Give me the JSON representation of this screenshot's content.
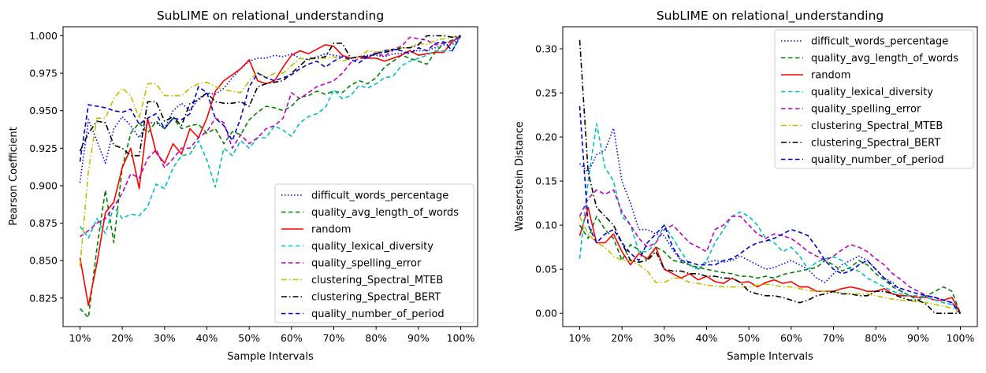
{
  "chart_data": [
    {
      "type": "line",
      "title": "SubLIME on relational_understanding",
      "xlabel": "Sample Intervals",
      "ylabel": "Pearson Coefficient",
      "legend_position": "bottom-right",
      "x": [
        10,
        12,
        14,
        16,
        18,
        20,
        22,
        24,
        26,
        28,
        30,
        32,
        34,
        36,
        38,
        40,
        42,
        44,
        46,
        48,
        50,
        52,
        54,
        56,
        58,
        60,
        62,
        64,
        66,
        68,
        70,
        72,
        74,
        76,
        78,
        80,
        82,
        84,
        86,
        88,
        90,
        92,
        94,
        96,
        98,
        100
      ],
      "x_tick_values": [
        10,
        20,
        30,
        40,
        50,
        60,
        70,
        80,
        90,
        100
      ],
      "x_tick_labels": [
        "10%",
        "20%",
        "30%",
        "40%",
        "50%",
        "60%",
        "70%",
        "80%",
        "90%",
        "100%"
      ],
      "xlim": [
        6,
        104
      ],
      "ylim": [
        0.806,
        1.006
      ],
      "y_ticks": [
        0.825,
        0.85,
        0.875,
        0.9,
        0.925,
        0.95,
        0.975,
        1.0
      ],
      "y_tick_labels": [
        "0.825",
        "0.850",
        "0.875",
        "0.900",
        "0.925",
        "0.950",
        "0.975",
        "1.000"
      ],
      "series": [
        {
          "name": "difficult_words_percentage",
          "color": "#0000ff",
          "dash": "dotted",
          "values": [
            0.902,
            0.944,
            0.93,
            0.915,
            0.938,
            0.946,
            0.94,
            0.932,
            0.942,
            0.942,
            0.938,
            0.95,
            0.955,
            0.95,
            0.958,
            0.962,
            0.961,
            0.965,
            0.972,
            0.978,
            0.983,
            0.985,
            0.985,
            0.987,
            0.986,
            0.988,
            0.985,
            0.984,
            0.986,
            0.988,
            0.987,
            0.986,
            0.985,
            0.986,
            0.987,
            0.987,
            0.986,
            0.988,
            0.988,
            0.99,
            0.99,
            0.99,
            0.992,
            0.994,
            0.994,
            1.0
          ]
        },
        {
          "name": "quality_avg_length_of_words",
          "color": "#008000",
          "dash": "dashed",
          "values": [
            0.818,
            0.812,
            0.858,
            0.897,
            0.862,
            0.912,
            0.935,
            0.942,
            0.935,
            0.943,
            0.938,
            0.945,
            0.938,
            0.94,
            0.941,
            0.935,
            0.938,
            0.928,
            0.936,
            0.934,
            0.944,
            0.949,
            0.953,
            0.952,
            0.95,
            0.953,
            0.959,
            0.96,
            0.963,
            0.961,
            0.963,
            0.962,
            0.967,
            0.97,
            0.968,
            0.972,
            0.979,
            0.983,
            0.987,
            0.985,
            0.983,
            0.981,
            0.989,
            0.995,
            0.997,
            1.0
          ]
        },
        {
          "name": "random",
          "color": "#ff0000",
          "dash": "solid",
          "values": [
            0.852,
            0.82,
            0.848,
            0.882,
            0.889,
            0.912,
            0.925,
            0.898,
            0.945,
            0.922,
            0.915,
            0.928,
            0.921,
            0.938,
            0.932,
            0.945,
            0.963,
            0.97,
            0.974,
            0.978,
            0.984,
            0.97,
            0.968,
            0.97,
            0.979,
            0.987,
            0.99,
            0.988,
            0.991,
            0.994,
            0.993,
            0.987,
            0.985,
            0.986,
            0.985,
            0.985,
            0.983,
            0.985,
            0.987,
            0.99,
            0.987,
            0.988,
            0.989,
            0.989,
            0.996,
            1.0
          ]
        },
        {
          "name": "quality_lexical_diversity",
          "color": "#00bfbf",
          "dash": "dashed",
          "values": [
            0.873,
            0.865,
            0.878,
            0.868,
            0.886,
            0.878,
            0.881,
            0.88,
            0.886,
            0.901,
            0.898,
            0.912,
            0.92,
            0.921,
            0.93,
            0.917,
            0.899,
            0.925,
            0.92,
            0.93,
            0.925,
            0.932,
            0.932,
            0.94,
            0.937,
            0.933,
            0.942,
            0.946,
            0.948,
            0.952,
            0.964,
            0.958,
            0.96,
            0.967,
            0.965,
            0.968,
            0.972,
            0.973,
            0.98,
            0.983,
            0.985,
            0.987,
            0.99,
            0.99,
            0.99,
            1.0
          ]
        },
        {
          "name": "quality_spelling_error",
          "color": "#bf00bf",
          "dash": "dashed",
          "values": [
            0.866,
            0.87,
            0.875,
            0.878,
            0.886,
            0.895,
            0.908,
            0.905,
            0.918,
            0.924,
            0.912,
            0.918,
            0.925,
            0.925,
            0.932,
            0.936,
            0.945,
            0.942,
            0.925,
            0.934,
            0.928,
            0.932,
            0.938,
            0.94,
            0.945,
            0.962,
            0.958,
            0.962,
            0.966,
            0.968,
            0.97,
            0.975,
            0.982,
            0.985,
            0.985,
            0.989,
            0.986,
            0.991,
            0.993,
            0.999,
            0.998,
            0.997,
            0.994,
            0.995,
            0.996,
            1.0
          ]
        },
        {
          "name": "clustering_Spectral_MTEB",
          "color": "#bfbf00",
          "dash": "dashdot",
          "values": [
            0.846,
            0.91,
            0.945,
            0.945,
            0.958,
            0.965,
            0.96,
            0.945,
            0.968,
            0.968,
            0.96,
            0.96,
            0.96,
            0.965,
            0.968,
            0.969,
            0.966,
            0.964,
            0.963,
            0.962,
            0.97,
            0.976,
            0.972,
            0.975,
            0.975,
            0.98,
            0.985,
            0.984,
            0.985,
            0.985,
            0.986,
            0.983,
            0.985,
            0.986,
            0.99,
            0.989,
            0.99,
            0.991,
            0.992,
            0.992,
            0.995,
            0.994,
            0.997,
            0.998,
            0.999,
            1.0
          ]
        },
        {
          "name": "clustering_Spectral_BERT",
          "color": "#000000",
          "dash": "dashdot",
          "values": [
            0.923,
            0.935,
            0.943,
            0.942,
            0.927,
            0.925,
            0.92,
            0.92,
            0.956,
            0.956,
            0.943,
            0.946,
            0.94,
            0.955,
            0.957,
            0.962,
            0.956,
            0.955,
            0.955,
            0.956,
            0.953,
            0.966,
            0.968,
            0.969,
            0.97,
            0.975,
            0.98,
            0.985,
            0.985,
            0.986,
            0.995,
            0.995,
            0.985,
            0.986,
            0.986,
            0.988,
            0.989,
            0.99,
            0.992,
            0.992,
            0.994,
            1.0,
            1.0,
            1.0,
            0.999,
            1.0
          ]
        },
        {
          "name": "quality_number_of_period",
          "color": "#0000cc",
          "dash": "dashed",
          "values": [
            0.916,
            0.954,
            0.953,
            0.952,
            0.95,
            0.949,
            0.951,
            0.941,
            0.945,
            0.948,
            0.938,
            0.945,
            0.944,
            0.948,
            0.966,
            0.962,
            0.945,
            0.94,
            0.93,
            0.945,
            0.966,
            0.975,
            0.972,
            0.97,
            0.972,
            0.974,
            0.978,
            0.981,
            0.983,
            0.979,
            0.983,
            0.986,
            0.984,
            0.982,
            0.986,
            0.988,
            0.99,
            0.991,
            0.99,
            0.988,
            0.992,
            0.99,
            0.995,
            0.996,
            0.99,
            1.0
          ]
        }
      ]
    },
    {
      "type": "line",
      "title": "SubLIME on relational_understanding",
      "xlabel": "Sample Intervals",
      "ylabel": "Wasserstein Distance",
      "legend_position": "top-right",
      "x": [
        10,
        12,
        14,
        16,
        18,
        20,
        22,
        24,
        26,
        28,
        30,
        32,
        34,
        36,
        38,
        40,
        42,
        44,
        46,
        48,
        50,
        52,
        54,
        56,
        58,
        60,
        62,
        64,
        66,
        68,
        70,
        72,
        74,
        76,
        78,
        80,
        82,
        84,
        86,
        88,
        90,
        92,
        94,
        96,
        98,
        100
      ],
      "x_tick_values": [
        10,
        20,
        30,
        40,
        50,
        60,
        70,
        80,
        90,
        100
      ],
      "x_tick_labels": [
        "10%",
        "20%",
        "30%",
        "40%",
        "50%",
        "60%",
        "70%",
        "80%",
        "90%",
        "100%"
      ],
      "xlim": [
        6,
        104
      ],
      "ylim": [
        -0.015,
        0.325
      ],
      "y_ticks": [
        0.0,
        0.05,
        0.1,
        0.15,
        0.2,
        0.25,
        0.3
      ],
      "y_tick_labels": [
        "0.00",
        "0.05",
        "0.10",
        "0.15",
        "0.20",
        "0.25",
        "0.30"
      ],
      "series": [
        {
          "name": "difficult_words_percentage",
          "color": "#0000ff",
          "dash": "dotted",
          "values": [
            0.17,
            0.16,
            0.18,
            0.185,
            0.21,
            0.15,
            0.125,
            0.095,
            0.095,
            0.09,
            0.088,
            0.072,
            0.06,
            0.055,
            0.05,
            0.058,
            0.06,
            0.058,
            0.06,
            0.065,
            0.06,
            0.055,
            0.05,
            0.052,
            0.056,
            0.06,
            0.055,
            0.05,
            0.04,
            0.035,
            0.045,
            0.055,
            0.06,
            0.065,
            0.06,
            0.05,
            0.04,
            0.035,
            0.025,
            0.02,
            0.018,
            0.02,
            0.018,
            0.015,
            0.012,
            0.0
          ]
        },
        {
          "name": "quality_avg_length_of_words",
          "color": "#008000",
          "dash": "dashed",
          "values": [
            0.1,
            0.085,
            0.11,
            0.095,
            0.085,
            0.06,
            0.078,
            0.072,
            0.06,
            0.075,
            0.07,
            0.06,
            0.058,
            0.055,
            0.052,
            0.05,
            0.048,
            0.046,
            0.045,
            0.042,
            0.042,
            0.04,
            0.042,
            0.04,
            0.044,
            0.046,
            0.048,
            0.05,
            0.052,
            0.06,
            0.055,
            0.048,
            0.052,
            0.06,
            0.055,
            0.045,
            0.038,
            0.03,
            0.025,
            0.02,
            0.015,
            0.02,
            0.025,
            0.03,
            0.025,
            0.0
          ]
        },
        {
          "name": "random",
          "color": "#ff0000",
          "dash": "solid",
          "values": [
            0.088,
            0.12,
            0.08,
            0.08,
            0.09,
            0.07,
            0.055,
            0.068,
            0.062,
            0.075,
            0.05,
            0.045,
            0.04,
            0.045,
            0.038,
            0.042,
            0.036,
            0.034,
            0.04,
            0.035,
            0.036,
            0.03,
            0.035,
            0.038,
            0.034,
            0.036,
            0.03,
            0.03,
            0.025,
            0.025,
            0.025,
            0.028,
            0.03,
            0.028,
            0.025,
            0.025,
            0.028,
            0.022,
            0.02,
            0.02,
            0.018,
            0.018,
            0.015,
            0.015,
            0.018,
            0.0
          ]
        },
        {
          "name": "quality_lexical_diversity",
          "color": "#00bfbf",
          "dash": "dashed",
          "values": [
            0.062,
            0.15,
            0.215,
            0.165,
            0.15,
            0.11,
            0.1,
            0.07,
            0.07,
            0.08,
            0.1,
            0.085,
            0.07,
            0.055,
            0.05,
            0.06,
            0.08,
            0.095,
            0.11,
            0.115,
            0.11,
            0.1,
            0.085,
            0.08,
            0.07,
            0.075,
            0.065,
            0.05,
            0.058,
            0.062,
            0.064,
            0.06,
            0.05,
            0.048,
            0.04,
            0.035,
            0.03,
            0.025,
            0.022,
            0.02,
            0.02,
            0.018,
            0.015,
            0.012,
            0.01,
            0.0
          ]
        },
        {
          "name": "quality_spelling_error",
          "color": "#bf00bf",
          "dash": "dashed",
          "values": [
            0.11,
            0.13,
            0.14,
            0.135,
            0.14,
            0.115,
            0.1,
            0.085,
            0.075,
            0.08,
            0.095,
            0.1,
            0.09,
            0.08,
            0.075,
            0.07,
            0.095,
            0.1,
            0.11,
            0.11,
            0.1,
            0.09,
            0.085,
            0.09,
            0.088,
            0.085,
            0.078,
            0.07,
            0.065,
            0.06,
            0.065,
            0.072,
            0.078,
            0.075,
            0.07,
            0.062,
            0.055,
            0.045,
            0.038,
            0.03,
            0.025,
            0.02,
            0.018,
            0.015,
            0.012,
            0.0
          ]
        },
        {
          "name": "clustering_Spectral_MTEB",
          "color": "#bfbf00",
          "dash": "dashdot",
          "values": [
            0.11,
            0.09,
            0.08,
            0.075,
            0.065,
            0.06,
            0.06,
            0.055,
            0.048,
            0.035,
            0.035,
            0.04,
            0.04,
            0.035,
            0.034,
            0.032,
            0.031,
            0.03,
            0.03,
            0.03,
            0.03,
            0.032,
            0.033,
            0.032,
            0.03,
            0.03,
            0.028,
            0.026,
            0.025,
            0.025,
            0.024,
            0.023,
            0.022,
            0.022,
            0.022,
            0.02,
            0.018,
            0.016,
            0.015,
            0.014,
            0.013,
            0.012,
            0.01,
            0.008,
            0.006,
            0.0
          ]
        },
        {
          "name": "clustering_Spectral_BERT",
          "color": "#000000",
          "dash": "dashdot",
          "values": [
            0.31,
            0.16,
            0.12,
            0.11,
            0.1,
            0.08,
            0.06,
            0.058,
            0.06,
            0.07,
            0.05,
            0.048,
            0.048,
            0.045,
            0.045,
            0.042,
            0.042,
            0.04,
            0.04,
            0.035,
            0.025,
            0.022,
            0.02,
            0.02,
            0.018,
            0.015,
            0.012,
            0.015,
            0.02,
            0.022,
            0.025,
            0.022,
            0.022,
            0.02,
            0.02,
            0.025,
            0.025,
            0.022,
            0.018,
            0.015,
            0.015,
            0.01,
            0.0,
            0.0,
            0.0,
            0.0
          ]
        },
        {
          "name": "quality_number_of_period",
          "color": "#0000cc",
          "dash": "dashed",
          "values": [
            0.235,
            0.1,
            0.08,
            0.09,
            0.095,
            0.08,
            0.068,
            0.06,
            0.08,
            0.09,
            0.1,
            0.075,
            0.06,
            0.058,
            0.055,
            0.055,
            0.055,
            0.06,
            0.062,
            0.068,
            0.075,
            0.08,
            0.082,
            0.085,
            0.09,
            0.095,
            0.092,
            0.088,
            0.075,
            0.06,
            0.05,
            0.045,
            0.048,
            0.055,
            0.06,
            0.05,
            0.04,
            0.032,
            0.028,
            0.025,
            0.022,
            0.02,
            0.018,
            0.015,
            0.012,
            0.0
          ]
        }
      ]
    }
  ]
}
